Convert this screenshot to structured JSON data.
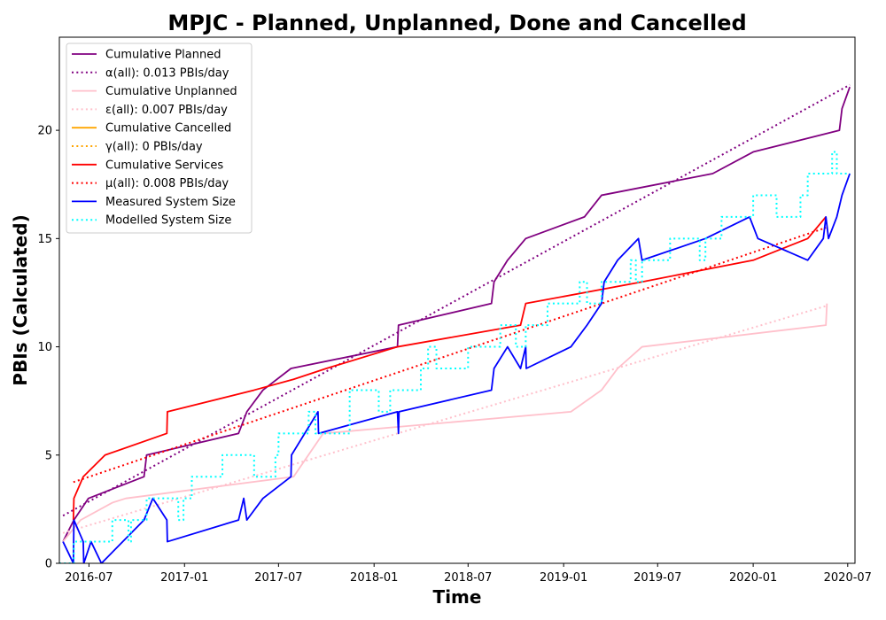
{
  "chart_data": {
    "type": "line",
    "title": "MPJC - Planned, Unplanned, Done  and Cancelled",
    "xlabel": "Time",
    "ylabel": "PBIs (Calculated)",
    "xlim": [
      "2016-05-05",
      "2020-07-15"
    ],
    "ylim": [
      0,
      24.3
    ],
    "x_ticks": [
      {
        "date": "2016-07-01",
        "label": "2016-07"
      },
      {
        "date": "2017-01-01",
        "label": "2017-01"
      },
      {
        "date": "2017-07-01",
        "label": "2017-07"
      },
      {
        "date": "2018-01-01",
        "label": "2018-01"
      },
      {
        "date": "2018-07-01",
        "label": "2018-07"
      },
      {
        "date": "2019-01-01",
        "label": "2019-01"
      },
      {
        "date": "2019-07-01",
        "label": "2019-07"
      },
      {
        "date": "2020-01-01",
        "label": "2020-01"
      },
      {
        "date": "2020-07-01",
        "label": "2020-07"
      }
    ],
    "y_ticks": [
      0,
      5,
      10,
      15,
      20
    ],
    "grid": false,
    "legend_position": "top-left",
    "series": [
      {
        "name": "Cumulative Planned",
        "color": "#800080",
        "style": "solid",
        "step": false,
        "points": [
          [
            "2016-05-12",
            1
          ],
          [
            "2016-06-02",
            2
          ],
          [
            "2016-06-30",
            3
          ],
          [
            "2016-10-15",
            4
          ],
          [
            "2016-10-20",
            5
          ],
          [
            "2017-04-15",
            6
          ],
          [
            "2017-05-01",
            7
          ],
          [
            "2017-06-01",
            8
          ],
          [
            "2017-07-25",
            9
          ],
          [
            "2018-02-15",
            10
          ],
          [
            "2018-02-17",
            11
          ],
          [
            "2018-08-15",
            12
          ],
          [
            "2018-08-20",
            13
          ],
          [
            "2018-09-15",
            14
          ],
          [
            "2018-10-20",
            15
          ],
          [
            "2019-02-10",
            16
          ],
          [
            "2019-03-15",
            17
          ],
          [
            "2019-10-15",
            18
          ],
          [
            "2020-01-01",
            19
          ],
          [
            "2020-06-15",
            20
          ],
          [
            "2020-06-20",
            21
          ],
          [
            "2020-07-05",
            22
          ]
        ]
      },
      {
        "name": "α(all): 0.013 PBIs/day",
        "color": "#800080",
        "style": "dotted",
        "step": false,
        "points": [
          [
            "2016-05-12",
            2.2
          ],
          [
            "2020-07-05",
            22.1
          ]
        ]
      },
      {
        "name": "Cumulative Unplanned",
        "color": "#ffc0cb",
        "style": "solid",
        "step": false,
        "points": [
          [
            "2016-05-12",
            1
          ],
          [
            "2016-06-15",
            2
          ],
          [
            "2016-08-15",
            2.8
          ],
          [
            "2016-09-10",
            3
          ],
          [
            "2017-07-30",
            4
          ],
          [
            "2017-09-25",
            6
          ],
          [
            "2018-02-15",
            6.3
          ],
          [
            "2019-01-15",
            7
          ],
          [
            "2019-03-15",
            8
          ],
          [
            "2019-04-15",
            9
          ],
          [
            "2019-06-01",
            10
          ],
          [
            "2020-05-20",
            11
          ],
          [
            "2020-05-22",
            12
          ]
        ]
      },
      {
        "name": "ε(all): 0.007 PBIs/day",
        "color": "#ffc0cb",
        "style": "dotted",
        "step": false,
        "points": [
          [
            "2016-05-12",
            1.4
          ],
          [
            "2020-05-22",
            11.9
          ]
        ]
      },
      {
        "name": "Cumulative Cancelled",
        "color": "#ffa500",
        "style": "solid",
        "step": false,
        "points": []
      },
      {
        "name": "γ(all): 0 PBIs/day",
        "color": "#ffa500",
        "style": "dotted",
        "step": false,
        "points": []
      },
      {
        "name": "Cumulative Services",
        "color": "#ff0000",
        "style": "solid",
        "step": false,
        "points": [
          [
            "2016-06-01",
            2
          ],
          [
            "2016-06-02",
            3
          ],
          [
            "2016-06-20",
            4
          ],
          [
            "2016-08-01",
            5
          ],
          [
            "2016-11-28",
            6
          ],
          [
            "2016-11-29",
            7
          ],
          [
            "2017-05-15",
            8
          ],
          [
            "2017-07-30",
            8.5
          ],
          [
            "2017-10-01",
            9
          ],
          [
            "2018-02-15",
            10
          ],
          [
            "2018-10-10",
            11
          ],
          [
            "2018-10-20",
            12
          ],
          [
            "2019-06-01",
            13
          ],
          [
            "2020-01-01",
            14
          ],
          [
            "2020-04-15",
            15
          ],
          [
            "2020-05-20",
            16
          ]
        ]
      },
      {
        "name": "μ(all): 0.008 PBIs/day",
        "color": "#ff0000",
        "style": "dotted",
        "step": false,
        "points": [
          [
            "2016-06-01",
            3.75
          ],
          [
            "2020-05-20",
            15.5
          ]
        ]
      },
      {
        "name": "Measured System Size",
        "color": "#0000ff",
        "style": "solid",
        "step": false,
        "points": [
          [
            "2016-05-12",
            1
          ],
          [
            "2016-06-01",
            0
          ],
          [
            "2016-06-02",
            2
          ],
          [
            "2016-06-20",
            1
          ],
          [
            "2016-06-21",
            0
          ],
          [
            "2016-07-05",
            1
          ],
          [
            "2016-07-25",
            0
          ],
          [
            "2016-10-15",
            2
          ],
          [
            "2016-11-01",
            3
          ],
          [
            "2016-11-28",
            2
          ],
          [
            "2016-11-29",
            1
          ],
          [
            "2017-04-15",
            2
          ],
          [
            "2017-04-25",
            3
          ],
          [
            "2017-05-01",
            2
          ],
          [
            "2017-06-01",
            3
          ],
          [
            "2017-07-25",
            4
          ],
          [
            "2017-07-26",
            5
          ],
          [
            "2017-09-15",
            7
          ],
          [
            "2017-09-16",
            6
          ],
          [
            "2018-02-15",
            7
          ],
          [
            "2018-02-17",
            6
          ],
          [
            "2018-02-18",
            7
          ],
          [
            "2018-08-15",
            8
          ],
          [
            "2018-08-20",
            9
          ],
          [
            "2018-09-15",
            10
          ],
          [
            "2018-10-10",
            9
          ],
          [
            "2018-10-20",
            10
          ],
          [
            "2018-10-21",
            9
          ],
          [
            "2019-01-15",
            10
          ],
          [
            "2019-02-15",
            11
          ],
          [
            "2019-03-15",
            12
          ],
          [
            "2019-03-20",
            13
          ],
          [
            "2019-04-15",
            14
          ],
          [
            "2019-05-25",
            15
          ],
          [
            "2019-06-01",
            14
          ],
          [
            "2019-10-01",
            15
          ],
          [
            "2019-12-25",
            16
          ],
          [
            "2020-01-10",
            15
          ],
          [
            "2020-04-15",
            14
          ],
          [
            "2020-05-15",
            15
          ],
          [
            "2020-05-20",
            16
          ],
          [
            "2020-05-25",
            15
          ],
          [
            "2020-06-10",
            16
          ],
          [
            "2020-06-20",
            17
          ],
          [
            "2020-07-05",
            18
          ]
        ]
      },
      {
        "name": "Modelled System Size",
        "color": "#00ffff",
        "style": "dotted",
        "step": true,
        "points": [
          [
            "2016-05-05",
            0
          ],
          [
            "2016-06-02",
            1
          ],
          [
            "2016-08-15",
            2
          ],
          [
            "2016-09-15",
            1
          ],
          [
            "2016-09-20",
            2
          ],
          [
            "2016-10-20",
            3
          ],
          [
            "2016-12-20",
            2
          ],
          [
            "2016-12-30",
            3
          ],
          [
            "2017-01-15",
            4
          ],
          [
            "2017-03-15",
            5
          ],
          [
            "2017-05-15",
            4
          ],
          [
            "2017-06-25",
            5
          ],
          [
            "2017-07-01",
            6
          ],
          [
            "2017-08-28",
            7
          ],
          [
            "2017-09-10",
            6
          ],
          [
            "2017-11-15",
            8
          ],
          [
            "2018-01-10",
            7
          ],
          [
            "2018-02-01",
            8
          ],
          [
            "2018-04-01",
            9
          ],
          [
            "2018-04-15",
            10
          ],
          [
            "2018-05-01",
            9
          ],
          [
            "2018-07-01",
            10
          ],
          [
            "2018-09-01",
            11
          ],
          [
            "2018-10-01",
            10
          ],
          [
            "2018-10-20",
            11
          ],
          [
            "2018-12-01",
            12
          ],
          [
            "2019-02-01",
            13
          ],
          [
            "2019-02-15",
            12
          ],
          [
            "2019-03-15",
            13
          ],
          [
            "2019-05-10",
            14
          ],
          [
            "2019-05-20",
            13
          ],
          [
            "2019-06-01",
            14
          ],
          [
            "2019-07-25",
            15
          ],
          [
            "2019-09-20",
            14
          ],
          [
            "2019-10-01",
            15
          ],
          [
            "2019-11-01",
            16
          ],
          [
            "2020-01-01",
            17
          ],
          [
            "2020-02-15",
            16
          ],
          [
            "2020-04-01",
            17
          ],
          [
            "2020-04-15",
            18
          ],
          [
            "2020-06-01",
            19
          ],
          [
            "2020-06-10",
            18
          ],
          [
            "2020-07-05",
            18
          ]
        ]
      }
    ]
  }
}
